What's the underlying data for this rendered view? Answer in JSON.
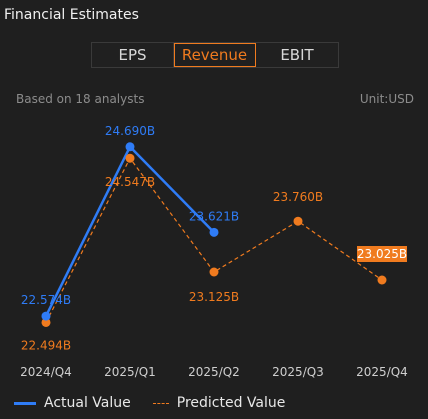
{
  "header": {
    "title": "Financial Estimates"
  },
  "tabs": [
    {
      "label": "EPS",
      "active": false
    },
    {
      "label": "Revenue",
      "active": true
    },
    {
      "label": "EBIT",
      "active": false
    }
  ],
  "meta": {
    "analysts": "Based on 18 analysts",
    "unit": "Unit:USD"
  },
  "colors": {
    "actual": "#2f7cf6",
    "predicted": "#f07b1f",
    "background": "#1f1f1f",
    "axis_text": "#cfcfcf"
  },
  "legend": {
    "actual_label": "Actual Value",
    "predicted_label": "Predicted Value"
  },
  "chart_data": {
    "type": "line",
    "categories": [
      "2024/Q4",
      "2025/Q1",
      "2025/Q2",
      "2025/Q3",
      "2025/Q4"
    ],
    "ylim": [
      22.3,
      24.9
    ],
    "series": [
      {
        "name": "Actual Value",
        "values": [
          22.574,
          24.69,
          23.621,
          null,
          null
        ],
        "labels": [
          "22.574B",
          "24.690B",
          "23.621B",
          "",
          ""
        ]
      },
      {
        "name": "Predicted Value",
        "values": [
          22.494,
          24.547,
          23.125,
          23.76,
          23.025
        ],
        "labels": [
          "22.494B",
          "24.547B",
          "23.125B",
          "23.760B",
          "23.025B"
        ],
        "highlight_last": true
      }
    ]
  }
}
